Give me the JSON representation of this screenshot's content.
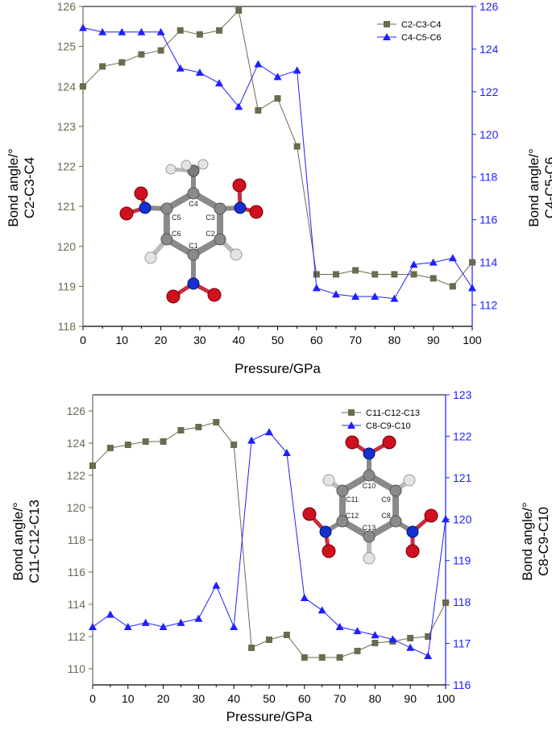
{
  "chart_data": [
    {
      "type": "line",
      "xlabel": "Pressure/GPa",
      "ylabel_left": [
        "Bond angle/°",
        "C2-C3-C4"
      ],
      "ylabel_right": [
        "Bond angle/°",
        "C4-C5-C6"
      ],
      "xlim": [
        0,
        100
      ],
      "ylim_left": [
        118,
        126
      ],
      "ylim_right": [
        111,
        126
      ],
      "xticks": [
        0,
        10,
        20,
        30,
        40,
        50,
        60,
        70,
        80,
        90,
        100
      ],
      "yticks_left": [
        118,
        119,
        120,
        121,
        122,
        123,
        124,
        125,
        126
      ],
      "yticks_right": [
        112,
        114,
        116,
        118,
        120,
        122,
        124,
        126
      ],
      "legend_position": "top-right",
      "x": [
        0,
        5,
        10,
        15,
        20,
        25,
        30,
        35,
        40,
        45,
        50,
        55,
        60,
        65,
        70,
        75,
        80,
        85,
        90,
        95,
        100
      ],
      "series": [
        {
          "name": "C2-C3-C4",
          "axis": "left",
          "marker": "square",
          "color": "#6b6b4f",
          "values": [
            124.0,
            124.5,
            124.6,
            124.8,
            124.9,
            125.4,
            125.3,
            125.4,
            125.9,
            123.4,
            123.7,
            122.5,
            119.3,
            119.3,
            119.4,
            119.3,
            119.3,
            119.3,
            119.2,
            119.0,
            119.6
          ]
        },
        {
          "name": "C4-C5-C6",
          "axis": "right",
          "marker": "triangle",
          "color": "#1f1fff",
          "values": [
            125.0,
            124.8,
            124.8,
            124.8,
            124.8,
            123.1,
            122.9,
            122.4,
            121.3,
            123.3,
            122.7,
            123.0,
            112.8,
            112.5,
            112.4,
            112.4,
            112.3,
            113.9,
            114.0,
            114.2,
            112.8
          ]
        }
      ]
    },
    {
      "type": "line",
      "xlabel": "Pressure/GPa",
      "ylabel_left": [
        "Bond angle/°",
        "C11-C12-C13"
      ],
      "ylabel_right": [
        "Bond angle/°",
        "C8-C9-C10"
      ],
      "xlim": [
        0,
        100
      ],
      "ylim_left": [
        109,
        127
      ],
      "ylim_right": [
        116,
        123
      ],
      "xticks": [
        0,
        10,
        20,
        30,
        40,
        50,
        60,
        70,
        80,
        90,
        100
      ],
      "yticks_left": [
        110,
        112,
        114,
        116,
        118,
        120,
        122,
        124,
        126
      ],
      "yticks_right": [
        116,
        117,
        118,
        119,
        120,
        121,
        122,
        123
      ],
      "legend_position": "top-right",
      "x": [
        0,
        5,
        10,
        15,
        20,
        25,
        30,
        35,
        40,
        45,
        50,
        55,
        60,
        65,
        70,
        75,
        80,
        85,
        90,
        95,
        100
      ],
      "series": [
        {
          "name": "C11-C12-C13",
          "axis": "left",
          "marker": "square",
          "color": "#6b6b4f",
          "values": [
            122.6,
            123.7,
            123.9,
            124.1,
            124.1,
            124.8,
            125.0,
            125.3,
            123.9,
            111.3,
            111.8,
            112.1,
            110.7,
            110.7,
            110.7,
            111.1,
            111.6,
            111.7,
            111.9,
            112.0,
            114.1
          ]
        },
        {
          "name": "C8-C9-C10",
          "axis": "right",
          "marker": "triangle",
          "color": "#1f1fff",
          "values": [
            117.4,
            117.7,
            117.4,
            117.5,
            117.4,
            117.5,
            117.6,
            118.4,
            117.4,
            121.9,
            122.1,
            121.6,
            118.1,
            117.8,
            117.4,
            117.3,
            117.2,
            117.1,
            116.9,
            116.7,
            120.0
          ]
        }
      ]
    }
  ],
  "molecules": [
    {
      "atom_labels": [
        "C4",
        "C5",
        "C3",
        "C6",
        "C2",
        "C1"
      ]
    },
    {
      "atom_labels": [
        "C10",
        "C11",
        "C9",
        "C12",
        "C8",
        "C13"
      ]
    }
  ]
}
